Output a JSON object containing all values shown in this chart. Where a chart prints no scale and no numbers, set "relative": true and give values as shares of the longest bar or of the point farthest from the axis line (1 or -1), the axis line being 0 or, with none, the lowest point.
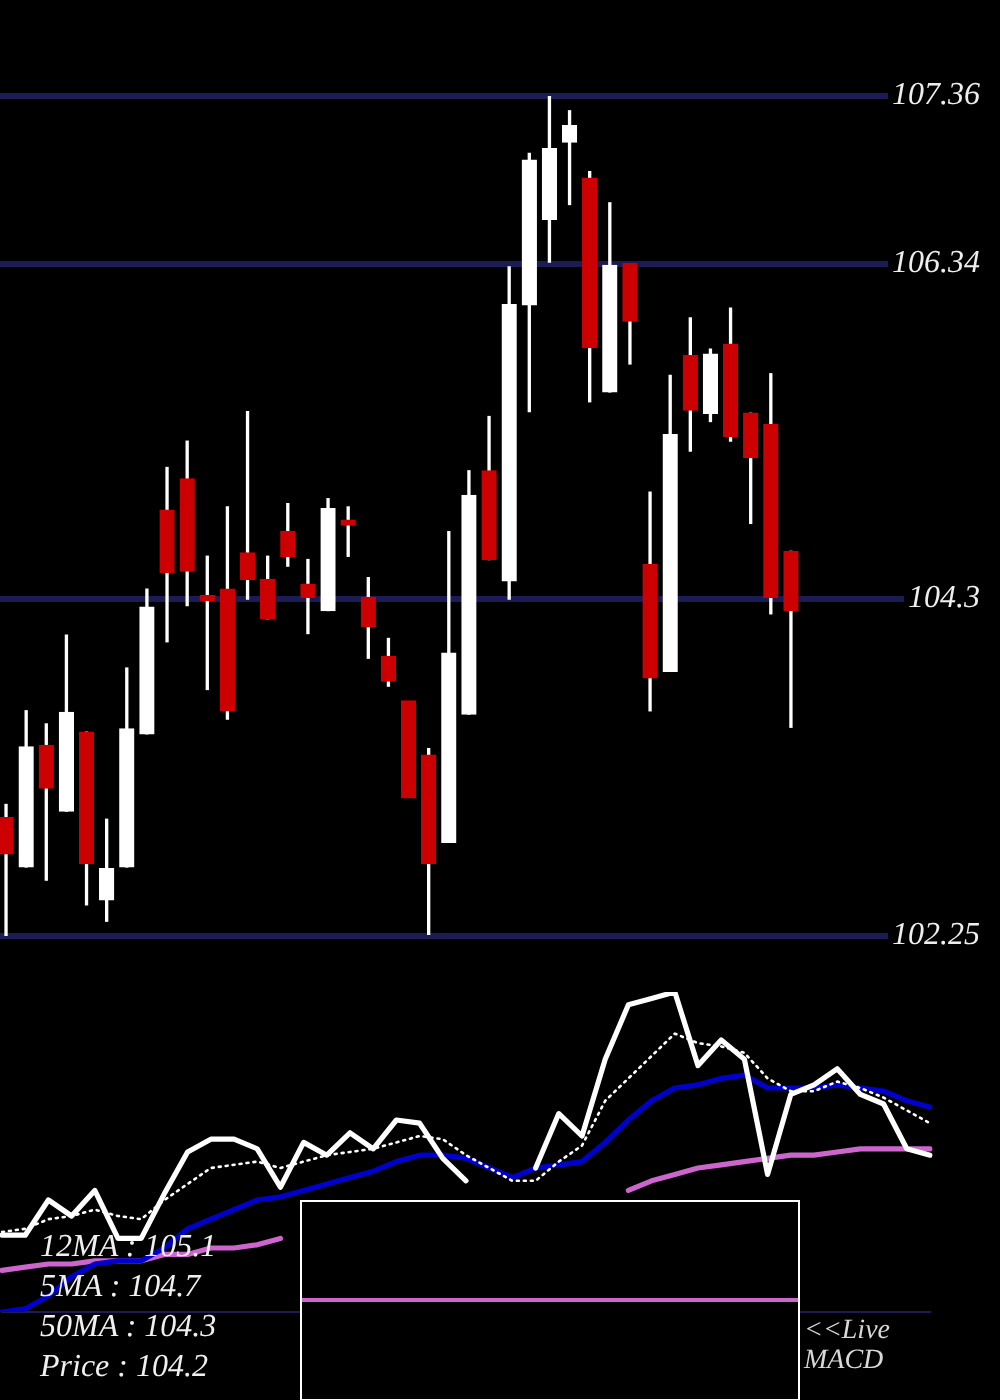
{
  "chart_data": [
    {
      "type": "candlestick",
      "categories": [
        null,
        null,
        null,
        null,
        null,
        null,
        null,
        null,
        null,
        null,
        null,
        null,
        null,
        null,
        null,
        null,
        null,
        null,
        null,
        null,
        null,
        null,
        null,
        null,
        null,
        null,
        null,
        null,
        null,
        null,
        null,
        null,
        null,
        null,
        null,
        null,
        null,
        null,
        null,
        null
      ],
      "ohlc": [
        [
          102.97,
          103.05,
          102.25,
          102.75
        ],
        [
          102.67,
          103.62,
          102.67,
          103.4
        ],
        [
          103.41,
          103.54,
          102.59,
          103.15
        ],
        [
          103.01,
          104.08,
          103.01,
          103.61
        ],
        [
          103.49,
          103.49,
          102.44,
          102.69
        ],
        [
          102.47,
          102.96,
          102.34,
          102.66
        ],
        [
          102.67,
          103.88,
          102.67,
          103.51
        ],
        [
          103.48,
          104.36,
          103.48,
          104.25
        ],
        [
          104.84,
          105.1,
          104.04,
          104.46
        ],
        [
          105.03,
          105.26,
          104.26,
          104.47
        ],
        [
          104.32,
          104.56,
          103.75,
          104.29
        ],
        [
          104.36,
          104.86,
          103.57,
          103.62
        ],
        [
          104.58,
          105.44,
          104.3,
          104.42
        ],
        [
          104.42,
          104.56,
          104.18,
          104.18
        ],
        [
          104.71,
          104.88,
          104.5,
          104.56
        ],
        [
          104.39,
          104.54,
          104.09,
          104.31
        ],
        [
          104.23,
          104.91,
          104.23,
          104.85
        ],
        [
          104.78,
          104.86,
          104.56,
          104.75
        ],
        [
          104.31,
          104.43,
          103.94,
          104.13
        ],
        [
          103.95,
          104.06,
          103.77,
          103.8
        ],
        [
          103.68,
          103.68,
          103.09,
          103.09
        ],
        [
          103.35,
          103.39,
          102.26,
          102.69
        ],
        [
          102.82,
          104.71,
          102.82,
          103.97
        ],
        [
          103.6,
          105.08,
          103.6,
          104.93
        ],
        [
          105.08,
          105.41,
          104.54,
          104.54
        ],
        [
          104.41,
          106.32,
          104.3,
          106.09
        ],
        [
          106.09,
          107.01,
          105.44,
          106.97
        ],
        [
          106.61,
          107.36,
          106.35,
          107.04
        ],
        [
          107.08,
          107.27,
          106.7,
          107.18
        ],
        [
          106.86,
          106.9,
          105.5,
          105.83
        ],
        [
          105.56,
          106.71,
          105.56,
          106.33
        ],
        [
          106.34,
          106.34,
          105.73,
          105.99
        ],
        [
          104.51,
          104.95,
          103.62,
          103.82
        ],
        [
          103.86,
          105.66,
          103.86,
          105.3
        ],
        [
          105.78,
          106.01,
          105.2,
          105.45
        ],
        [
          105.43,
          105.82,
          105.38,
          105.79
        ],
        [
          105.85,
          106.07,
          105.26,
          105.29
        ],
        [
          105.43,
          105.43,
          104.76,
          105.16
        ],
        [
          105.36,
          105.67,
          104.21,
          104.31
        ],
        [
          104.59,
          104.59,
          103.52,
          104.23
        ]
      ],
      "colors": [
        "#cc0000",
        "#ffffff",
        "#cc0000",
        "#ffffff",
        "#cc0000",
        "#ffffff",
        "#ffffff",
        "#ffffff",
        "#cc0000",
        "#cc0000",
        "#cc0000",
        "#cc0000",
        "#cc0000",
        "#cc0000",
        "#cc0000",
        "#cc0000",
        "#ffffff",
        "#cc0000",
        "#cc0000",
        "#cc0000",
        "#cc0000",
        "#cc0000",
        "#ffffff",
        "#ffffff",
        "#cc0000",
        "#ffffff",
        "#ffffff",
        "#ffffff",
        "#ffffff",
        "#cc0000",
        "#ffffff",
        "#cc0000",
        "#cc0000",
        "#ffffff",
        "#cc0000",
        "#ffffff",
        "#cc0000",
        "#cc0000",
        "#cc0000",
        "#cc0000"
      ],
      "ylim": [
        102.25,
        107.36
      ],
      "yticks": [
        102.25,
        104.3,
        106.34,
        107.36
      ],
      "grid": "y",
      "tick_labels": "y"
    },
    {
      "type": "line",
      "relative": true,
      "tick_labels": false,
      "categories": [
        null,
        null,
        null,
        null,
        null,
        null,
        null,
        null,
        null,
        null,
        null,
        null,
        null,
        null,
        null,
        null,
        null,
        null,
        null,
        null,
        null,
        null,
        null,
        null,
        null,
        null,
        null,
        null,
        null,
        null,
        null,
        null,
        null,
        null,
        null,
        null,
        null,
        null,
        null,
        null,
        null
      ],
      "series": [
        {
          "color": "#ffffff",
          "values": [
            0.24,
            0.24,
            0.35,
            0.3,
            0.38,
            0.23,
            0.23,
            0.37,
            0.5,
            0.54,
            0.54,
            0.51,
            0.39,
            0.53,
            0.49,
            0.56,
            0.51,
            0.6,
            0.59,
            0.48,
            0.41,
            null,
            null,
            0.45,
            0.62,
            0.55,
            0.79,
            0.96,
            0.98,
            1.0,
            0.77,
            0.85,
            0.79,
            0.43,
            0.68,
            0.71,
            0.76,
            0.68,
            0.65,
            0.51,
            0.49
          ]
        },
        {
          "color": "#ffffff",
          "line_style": "dotted",
          "values": [
            0.25,
            0.26,
            0.29,
            0.3,
            0.32,
            0.3,
            0.29,
            0.35,
            0.4,
            0.45,
            0.46,
            0.47,
            0.45,
            0.47,
            0.49,
            0.5,
            0.51,
            0.53,
            0.55,
            0.54,
            0.49,
            0.45,
            0.41,
            0.41,
            0.47,
            0.52,
            0.66,
            0.73,
            0.8,
            0.87,
            0.84,
            0.83,
            0.81,
            0.73,
            0.69,
            0.69,
            0.72,
            0.7,
            0.67,
            0.63,
            0.59
          ]
        },
        {
          "color": "#0000cc",
          "values": [
            0.0,
            0.01,
            0.05,
            0.11,
            0.15,
            0.16,
            0.16,
            0.2,
            0.26,
            0.29,
            0.32,
            0.35,
            0.36,
            0.38,
            0.4,
            0.42,
            0.44,
            0.47,
            0.49,
            0.49,
            0.48,
            0.45,
            0.42,
            0.45,
            0.46,
            0.47,
            0.53,
            0.6,
            0.66,
            0.7,
            0.71,
            0.73,
            0.74,
            0.7,
            0.7,
            0.7,
            0.71,
            0.7,
            0.69,
            0.66,
            0.64
          ]
        },
        {
          "color": "#cc66cc",
          "values": [
            0.13,
            0.14,
            0.15,
            0.15,
            0.16,
            0.16,
            0.16,
            0.18,
            0.18,
            0.2,
            0.2,
            0.21,
            0.23,
            null,
            null,
            null,
            null,
            null,
            null,
            null,
            null,
            null,
            null,
            null,
            null,
            null,
            null,
            0.38,
            0.41,
            0.43,
            0.45,
            0.46,
            0.47,
            0.48,
            0.49,
            0.49,
            0.5,
            0.51,
            0.51,
            0.51,
            0.51
          ]
        }
      ],
      "annotations": [
        "12MA : 105.1",
        "5MA : 104.7",
        "50MA : 104.3",
        "Price : 104.2",
        "<<Live MACD"
      ]
    }
  ]
}
